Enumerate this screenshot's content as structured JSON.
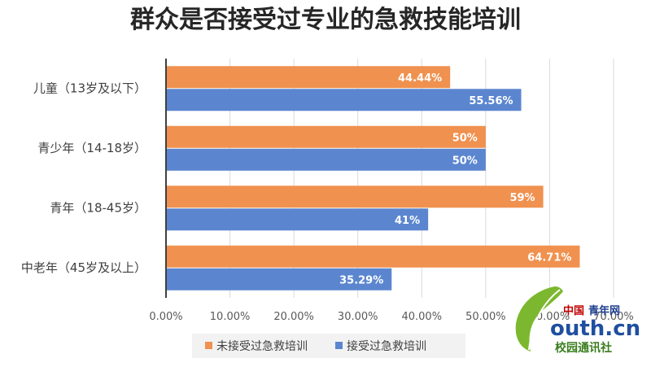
{
  "chart_data": {
    "type": "bar",
    "orientation": "horizontal",
    "title": "群众是否接受过专业的急救技能培训",
    "categories": [
      "儿童（13岁及以下）",
      "青少年（14-18岁）",
      "青年（18-45岁）",
      "中老年（45岁及以上）"
    ],
    "series": [
      {
        "name": "未接受过急救培训",
        "color": "#f0914f",
        "values": [
          44.44,
          50,
          59,
          64.71
        ],
        "labels": [
          "44.44%",
          "50%",
          "59%",
          "64.71%"
        ]
      },
      {
        "name": "接受过急救培训",
        "color": "#5b86cf",
        "values": [
          55.56,
          50,
          41,
          35.29
        ],
        "labels": [
          "55.56%",
          "50%",
          "41%",
          "35.29%"
        ]
      }
    ],
    "xlim": [
      0,
      70
    ],
    "x_ticks": [
      "0.00%",
      "10.00%",
      "20.00%",
      "30.00%",
      "40.00%",
      "50.00%",
      "60.00%",
      "70.00%"
    ],
    "grid": true,
    "legend_position": "bottom"
  },
  "watermark": {
    "red_text": "中国",
    "blue_text": "青年网",
    "big_text": "outh.cn",
    "green_text": "校园通讯社",
    "leaf_color": "#7cb82f"
  }
}
